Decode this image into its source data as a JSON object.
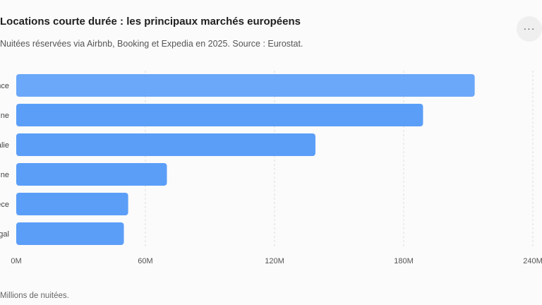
{
  "header": {
    "title": "Locations courte durée : les principaux marchés européens",
    "subtitle": "Nuitées réservées via Airbnb, Booking et Expedia en 2025. Source : Eurostat.",
    "menu_label": "···"
  },
  "footnote": "Millions de nuitées.",
  "chart_data": {
    "type": "bar",
    "orientation": "horizontal",
    "categories": [
      "France",
      "Espagne",
      "Italie",
      "Allemagne",
      "Grèce",
      "Portugal"
    ],
    "values": [
      213,
      189,
      139,
      70,
      52,
      50
    ],
    "xlim": [
      0,
      240
    ],
    "ticks": [
      0,
      60,
      120,
      180,
      240
    ],
    "tick_labels": [
      "0M",
      "60M",
      "120M",
      "180M",
      "240M"
    ],
    "xlabel": "",
    "ylabel": "",
    "grid": "vertical dashed",
    "bar_color": "#5b9ef8"
  }
}
